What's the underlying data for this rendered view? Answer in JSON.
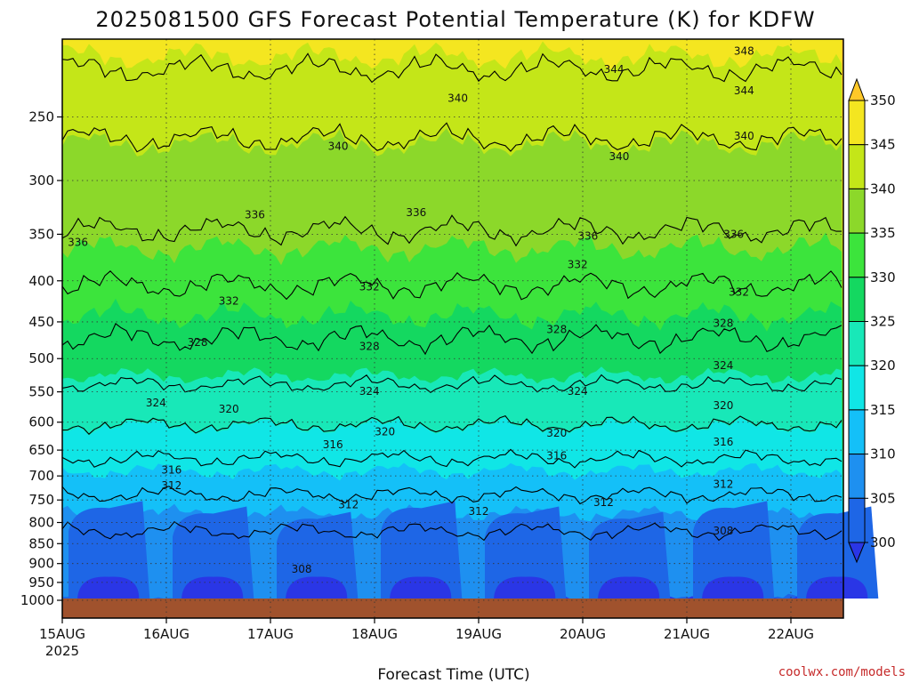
{
  "chart_data": {
    "type": "heatmap",
    "title": "2025081500 GFS Forecast Potential Temperature (K) for KDFW",
    "xlabel": "Forecast Time (UTC)",
    "ylabel": "",
    "year_label": "2025",
    "credit": "coolwx.com/models",
    "x_ticks": [
      "15AUG",
      "16AUG",
      "17AUG",
      "18AUG",
      "19AUG",
      "20AUG",
      "21AUG",
      "22AUG"
    ],
    "x_range": [
      0,
      7.5
    ],
    "y_ticks": [
      250,
      300,
      350,
      400,
      450,
      500,
      550,
      600,
      650,
      700,
      750,
      800,
      850,
      900,
      950,
      1000
    ],
    "y_range": [
      200,
      1000
    ],
    "y_scale": "log",
    "color_levels": [
      300,
      305,
      310,
      315,
      320,
      325,
      330,
      335,
      340,
      345,
      350
    ],
    "colors": [
      "#2a36e6",
      "#1e66e6",
      "#1e90f0",
      "#14c0f8",
      "#10e6e6",
      "#18e8b8",
      "#14d860",
      "#3ce43c",
      "#8cd82a",
      "#c4e618",
      "#f4e620",
      "#ffc828"
    ],
    "underground_color": "#a0522d",
    "contour_interval": 4,
    "legend_position": "right",
    "grid": true,
    "profile": {
      "pressure": [
        200,
        250,
        300,
        350,
        400,
        450,
        500,
        550,
        600,
        650,
        700,
        750,
        800,
        850,
        900,
        950,
        1000
      ],
      "theta": [
        346,
        341,
        338.5,
        336,
        332.5,
        329.5,
        326.5,
        323.5,
        320.5,
        317,
        314.5,
        311.5,
        309,
        307,
        306,
        305.5,
        305
      ]
    },
    "contour_labels": [
      {
        "text": "348",
        "x": 6.55,
        "y": 207
      },
      {
        "text": "344",
        "x": 5.3,
        "y": 218
      },
      {
        "text": "344",
        "x": 6.55,
        "y": 232
      },
      {
        "text": "340",
        "x": 3.8,
        "y": 237
      },
      {
        "text": "340",
        "x": 2.65,
        "y": 272
      },
      {
        "text": "340",
        "x": 5.35,
        "y": 280
      },
      {
        "text": "340",
        "x": 6.55,
        "y": 264
      },
      {
        "text": "336",
        "x": 0.15,
        "y": 358
      },
      {
        "text": "336",
        "x": 1.85,
        "y": 331
      },
      {
        "text": "336",
        "x": 3.4,
        "y": 329
      },
      {
        "text": "336",
        "x": 5.05,
        "y": 352
      },
      {
        "text": "336",
        "x": 6.45,
        "y": 350
      },
      {
        "text": "332",
        "x": 1.6,
        "y": 424
      },
      {
        "text": "332",
        "x": 2.95,
        "y": 407
      },
      {
        "text": "332",
        "x": 4.95,
        "y": 382
      },
      {
        "text": "332",
        "x": 6.5,
        "y": 413
      },
      {
        "text": "328",
        "x": 1.3,
        "y": 477
      },
      {
        "text": "328",
        "x": 2.95,
        "y": 483
      },
      {
        "text": "328",
        "x": 4.75,
        "y": 460
      },
      {
        "text": "328",
        "x": 6.35,
        "y": 452
      },
      {
        "text": "324",
        "x": 6.35,
        "y": 510
      },
      {
        "text": "324",
        "x": 0.9,
        "y": 568
      },
      {
        "text": "324",
        "x": 2.95,
        "y": 549
      },
      {
        "text": "324",
        "x": 4.95,
        "y": 549
      },
      {
        "text": "320",
        "x": 1.6,
        "y": 578
      },
      {
        "text": "320",
        "x": 3.1,
        "y": 617
      },
      {
        "text": "320",
        "x": 4.75,
        "y": 619
      },
      {
        "text": "320",
        "x": 6.35,
        "y": 572
      },
      {
        "text": "316",
        "x": 2.6,
        "y": 640
      },
      {
        "text": "316",
        "x": 4.75,
        "y": 661
      },
      {
        "text": "316",
        "x": 6.35,
        "y": 635
      },
      {
        "text": "316",
        "x": 1.05,
        "y": 688
      },
      {
        "text": "312",
        "x": 1.05,
        "y": 720
      },
      {
        "text": "312",
        "x": 2.75,
        "y": 760
      },
      {
        "text": "312",
        "x": 4.0,
        "y": 775
      },
      {
        "text": "312",
        "x": 5.2,
        "y": 755
      },
      {
        "text": "312",
        "x": 6.35,
        "y": 717
      },
      {
        "text": "308",
        "x": 6.35,
        "y": 820
      },
      {
        "text": "308",
        "x": 2.3,
        "y": 915
      }
    ]
  }
}
